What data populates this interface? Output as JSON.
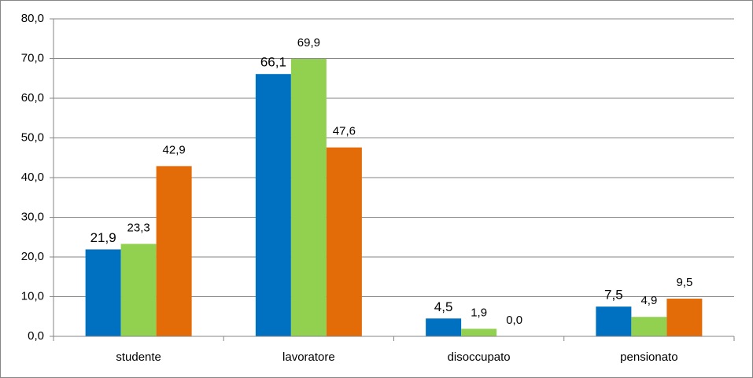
{
  "chart_data": {
    "type": "bar",
    "categories": [
      "studente",
      "lavoratore",
      "disoccupato",
      "pensionato"
    ],
    "series": [
      {
        "color": "#0070c0",
        "values": [
          21.9,
          66.1,
          4.5,
          7.5
        ],
        "value_labels": [
          "21,9",
          "66,1",
          "4,5",
          "7,5"
        ]
      },
      {
        "color": "#92d050",
        "values": [
          23.3,
          69.9,
          1.9,
          4.9
        ],
        "value_labels": [
          "23,3",
          "69,9",
          "1,9",
          "4,9"
        ]
      },
      {
        "color": "#e36c09",
        "values": [
          42.9,
          47.6,
          0.0,
          9.5
        ],
        "value_labels": [
          "42,9",
          "47,6",
          "0,0",
          "9,5"
        ]
      }
    ],
    "ylim": [
      0,
      80
    ],
    "yticks": [
      {
        "value": 0,
        "label": "0,0"
      },
      {
        "value": 10,
        "label": "10,0"
      },
      {
        "value": 20,
        "label": "20,0"
      },
      {
        "value": 30,
        "label": "30,0"
      },
      {
        "value": 40,
        "label": "40,0"
      },
      {
        "value": 50,
        "label": "50,0"
      },
      {
        "value": 60,
        "label": "60,0"
      },
      {
        "value": 70,
        "label": "70,0"
      },
      {
        "value": 80,
        "label": "80,0"
      }
    ],
    "grid": true
  }
}
